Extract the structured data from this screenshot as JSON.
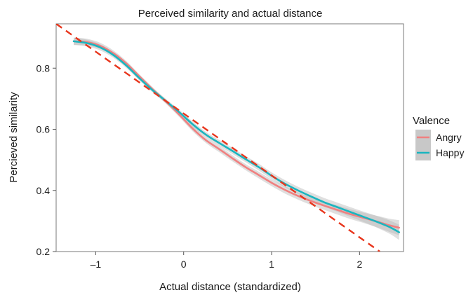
{
  "chart_data": {
    "type": "line",
    "title": "Perceived similarity and actual distance",
    "xlabel": "Actual distance (standardized)",
    "ylabel": "Percieved similarity",
    "xlim": [
      -1.45,
      2.5
    ],
    "ylim": [
      0.2,
      0.945
    ],
    "x_ticks": [
      -1,
      0,
      1,
      2
    ],
    "x_tick_labels": [
      "–1",
      "0",
      "1",
      "2"
    ],
    "y_ticks": [
      0.2,
      0.4,
      0.6,
      0.8
    ],
    "y_tick_labels": [
      "0.2",
      "0.4",
      "0.6",
      "0.8"
    ],
    "grid": false,
    "legend": {
      "title": "Valence",
      "position": "right"
    },
    "series": [
      {
        "name": "Angry",
        "color": "#f08080",
        "band_color": "#b8b8b8",
        "x": [
          -1.25,
          -1.1,
          -0.95,
          -0.8,
          -0.65,
          -0.5,
          -0.35,
          -0.2,
          -0.05,
          0.1,
          0.25,
          0.4,
          0.55,
          0.7,
          0.85,
          1.0,
          1.15,
          1.3,
          1.45,
          1.6,
          1.75,
          1.9,
          2.05,
          2.2,
          2.35,
          2.45
        ],
        "y": [
          0.888,
          0.885,
          0.873,
          0.849,
          0.815,
          0.772,
          0.73,
          0.69,
          0.648,
          0.603,
          0.565,
          0.536,
          0.506,
          0.477,
          0.451,
          0.425,
          0.402,
          0.382,
          0.365,
          0.35,
          0.336,
          0.322,
          0.31,
          0.298,
          0.285,
          0.278
        ],
        "band": [
          0.012,
          0.011,
          0.01,
          0.009,
          0.008,
          0.007,
          0.007,
          0.007,
          0.008,
          0.009,
          0.009,
          0.01,
          0.01,
          0.01,
          0.011,
          0.011,
          0.012,
          0.012,
          0.013,
          0.014,
          0.015,
          0.016,
          0.017,
          0.019,
          0.022,
          0.025
        ]
      },
      {
        "name": "Happy",
        "color": "#1ab5bf",
        "band_color": "#b8b8b8",
        "x": [
          -1.25,
          -1.1,
          -0.95,
          -0.8,
          -0.65,
          -0.5,
          -0.35,
          -0.2,
          -0.05,
          0.1,
          0.25,
          0.4,
          0.55,
          0.7,
          0.85,
          1.0,
          1.15,
          1.3,
          1.45,
          1.6,
          1.75,
          1.9,
          2.05,
          2.2,
          2.35,
          2.45
        ],
        "y": [
          0.888,
          0.882,
          0.868,
          0.843,
          0.808,
          0.766,
          0.727,
          0.692,
          0.656,
          0.617,
          0.583,
          0.556,
          0.53,
          0.503,
          0.477,
          0.448,
          0.422,
          0.4,
          0.38,
          0.361,
          0.345,
          0.329,
          0.313,
          0.297,
          0.279,
          0.263
        ],
        "band": [
          0.012,
          0.011,
          0.01,
          0.009,
          0.008,
          0.007,
          0.007,
          0.007,
          0.008,
          0.009,
          0.009,
          0.01,
          0.01,
          0.01,
          0.011,
          0.011,
          0.012,
          0.012,
          0.013,
          0.014,
          0.015,
          0.016,
          0.017,
          0.019,
          0.022,
          0.025
        ]
      }
    ],
    "reference_line": {
      "style": "dashed",
      "color": "#e8351c",
      "x": [
        -1.45,
        2.23
      ],
      "y": [
        0.945,
        0.2
      ]
    }
  }
}
